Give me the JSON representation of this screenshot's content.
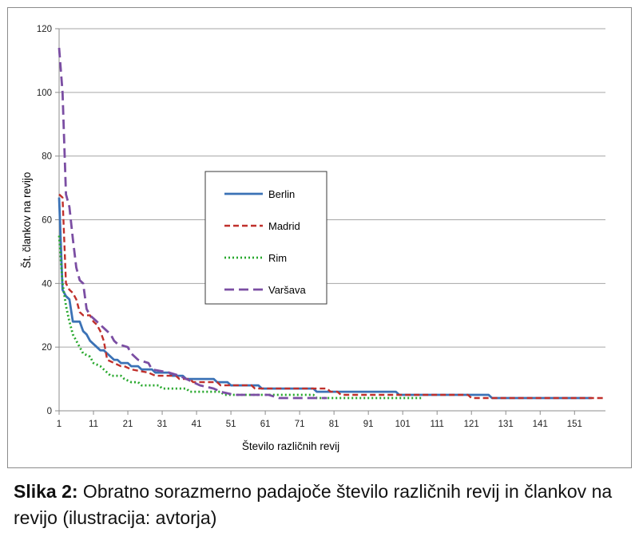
{
  "chart_data": {
    "type": "line",
    "xlabel": "Število različnih revij",
    "ylabel": "Št. člankov na revijo",
    "xlim": [
      1,
      160
    ],
    "ylim": [
      0,
      120
    ],
    "x_ticks": [
      1,
      11,
      21,
      31,
      41,
      51,
      61,
      71,
      81,
      91,
      101,
      111,
      121,
      131,
      141,
      151
    ],
    "y_ticks": [
      0,
      20,
      40,
      60,
      80,
      100,
      120
    ],
    "grid": "horizontal",
    "legend_position": "center",
    "series": [
      {
        "name": "Berlin",
        "color": "#3b72b6",
        "dash": "solid",
        "points": [
          [
            1,
            67
          ],
          [
            2,
            38
          ],
          [
            3,
            36
          ],
          [
            4,
            35
          ],
          [
            5,
            28
          ],
          [
            6,
            28
          ],
          [
            7,
            28
          ],
          [
            8,
            25
          ],
          [
            9,
            24
          ],
          [
            10,
            22
          ],
          [
            11,
            21
          ],
          [
            12,
            20
          ],
          [
            13,
            19
          ],
          [
            14,
            19
          ],
          [
            15,
            18
          ],
          [
            16,
            17
          ],
          [
            17,
            16
          ],
          [
            18,
            16
          ],
          [
            19,
            15
          ],
          [
            20,
            15
          ],
          [
            21,
            15
          ],
          [
            22,
            14
          ],
          [
            24,
            14
          ],
          [
            25,
            13
          ],
          [
            27,
            13
          ],
          [
            28,
            13
          ],
          [
            29,
            12
          ],
          [
            31,
            12
          ],
          [
            33,
            12
          ],
          [
            34,
            11
          ],
          [
            37,
            11
          ],
          [
            38,
            10
          ],
          [
            46,
            10
          ],
          [
            47,
            9
          ],
          [
            50,
            9
          ],
          [
            51,
            8
          ],
          [
            59,
            8
          ],
          [
            60,
            7
          ],
          [
            75,
            7
          ],
          [
            76,
            6
          ],
          [
            99,
            6
          ],
          [
            100,
            5
          ],
          [
            126,
            5
          ],
          [
            127,
            4
          ],
          [
            156,
            4
          ]
        ]
      },
      {
        "name": "Madrid",
        "color": "#c0302b",
        "dash": "dashed",
        "points": [
          [
            1,
            68
          ],
          [
            2,
            67
          ],
          [
            3,
            40
          ],
          [
            4,
            38
          ],
          [
            5,
            37
          ],
          [
            6,
            35
          ],
          [
            7,
            31
          ],
          [
            8,
            30
          ],
          [
            9,
            30
          ],
          [
            10,
            30
          ],
          [
            11,
            28
          ],
          [
            12,
            27
          ],
          [
            13,
            25
          ],
          [
            14,
            22
          ],
          [
            15,
            16
          ],
          [
            17,
            15
          ],
          [
            19,
            14
          ],
          [
            20,
            14
          ],
          [
            22,
            13
          ],
          [
            27,
            12
          ],
          [
            29,
            11
          ],
          [
            35,
            11
          ],
          [
            36,
            10
          ],
          [
            39,
            10
          ],
          [
            40,
            9
          ],
          [
            47,
            9
          ],
          [
            48,
            8
          ],
          [
            57,
            8
          ],
          [
            58,
            7
          ],
          [
            79,
            7
          ],
          [
            80,
            6
          ],
          [
            82,
            6
          ],
          [
            83,
            5
          ],
          [
            120,
            5
          ],
          [
            121,
            4
          ],
          [
            160,
            4
          ]
        ]
      },
      {
        "name": "Rim",
        "color": "#27a82c",
        "dash": "dotted",
        "points": [
          [
            1,
            55
          ],
          [
            2,
            40
          ],
          [
            3,
            33
          ],
          [
            4,
            28
          ],
          [
            5,
            24
          ],
          [
            6,
            22
          ],
          [
            7,
            20
          ],
          [
            8,
            18
          ],
          [
            10,
            17
          ],
          [
            11,
            15
          ],
          [
            13,
            14
          ],
          [
            14,
            13
          ],
          [
            15,
            12
          ],
          [
            16,
            11
          ],
          [
            19,
            11
          ],
          [
            20,
            10
          ],
          [
            22,
            9
          ],
          [
            24,
            9
          ],
          [
            25,
            8
          ],
          [
            30,
            8
          ],
          [
            31,
            7
          ],
          [
            38,
            7
          ],
          [
            39,
            6
          ],
          [
            48,
            6
          ],
          [
            49,
            5
          ],
          [
            75,
            5
          ],
          [
            76,
            4
          ],
          [
            107,
            4
          ]
        ]
      },
      {
        "name": "Varšava",
        "color": "#7b4ea3",
        "dash": "longdash",
        "points": [
          [
            1,
            114
          ],
          [
            2,
            100
          ],
          [
            3,
            68
          ],
          [
            4,
            64
          ],
          [
            5,
            54
          ],
          [
            6,
            45
          ],
          [
            7,
            41
          ],
          [
            8,
            40
          ],
          [
            9,
            32
          ],
          [
            10,
            30
          ],
          [
            11,
            29
          ],
          [
            12,
            28
          ],
          [
            13,
            27
          ],
          [
            14,
            26
          ],
          [
            15,
            25
          ],
          [
            16,
            24
          ],
          [
            17,
            22
          ],
          [
            18,
            21
          ],
          [
            21,
            20
          ],
          [
            22,
            18
          ],
          [
            23,
            17
          ],
          [
            24,
            16
          ],
          [
            27,
            15
          ],
          [
            28,
            13
          ],
          [
            33,
            12
          ],
          [
            36,
            11
          ],
          [
            38,
            10
          ],
          [
            40,
            9
          ],
          [
            42,
            8
          ],
          [
            46,
            7
          ],
          [
            48,
            6
          ],
          [
            52,
            5
          ],
          [
            62,
            5
          ],
          [
            65,
            4
          ],
          [
            79,
            4
          ]
        ]
      }
    ]
  },
  "caption": {
    "lead": "Slika 2:",
    "text": " Obratno sorazmerno padajoče število različnih revij in člankov na revijo (ilustracija: avtorja)"
  }
}
